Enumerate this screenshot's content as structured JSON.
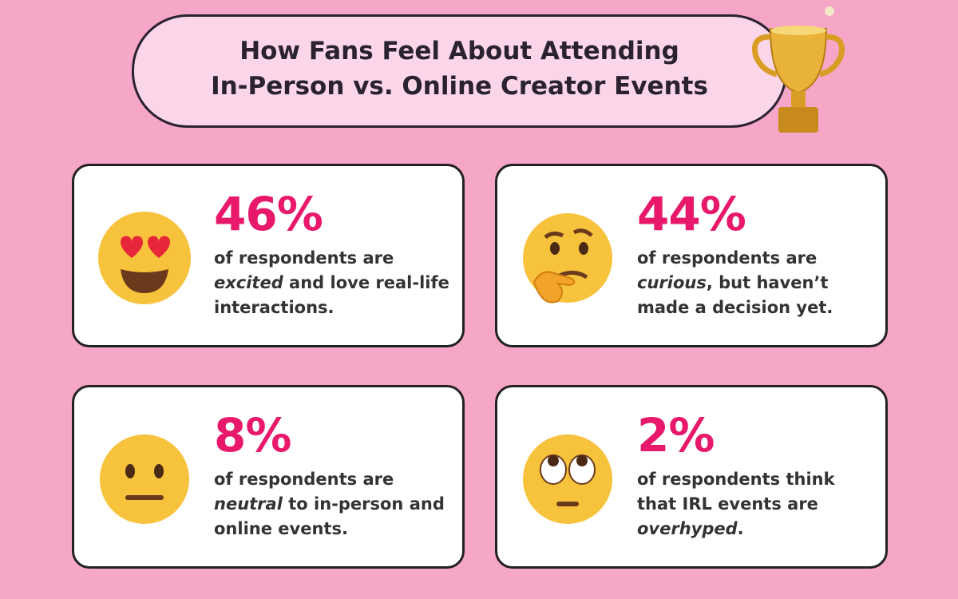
{
  "header": {
    "title_lines": [
      "How Fans Feel About Attending",
      "In-Person vs. Online Creator Events"
    ]
  },
  "cards": [
    {
      "percent": "46%",
      "text_before": "of respondents are ",
      "emphasis": "excited",
      "text_after": " and love real-life interactions."
    },
    {
      "percent": "44%",
      "text_before": "of respondents are ",
      "emphasis": "curious",
      "text_after": ", but haven’t made a decision yet."
    },
    {
      "percent": "8%",
      "text_before": "of respondents are ",
      "emphasis": "neutral",
      "text_after": " to in-person and online events."
    },
    {
      "percent": "2%",
      "text_before": "of respondents think that IRL events are ",
      "emphasis": "overhyped",
      "text_after": "."
    }
  ]
}
